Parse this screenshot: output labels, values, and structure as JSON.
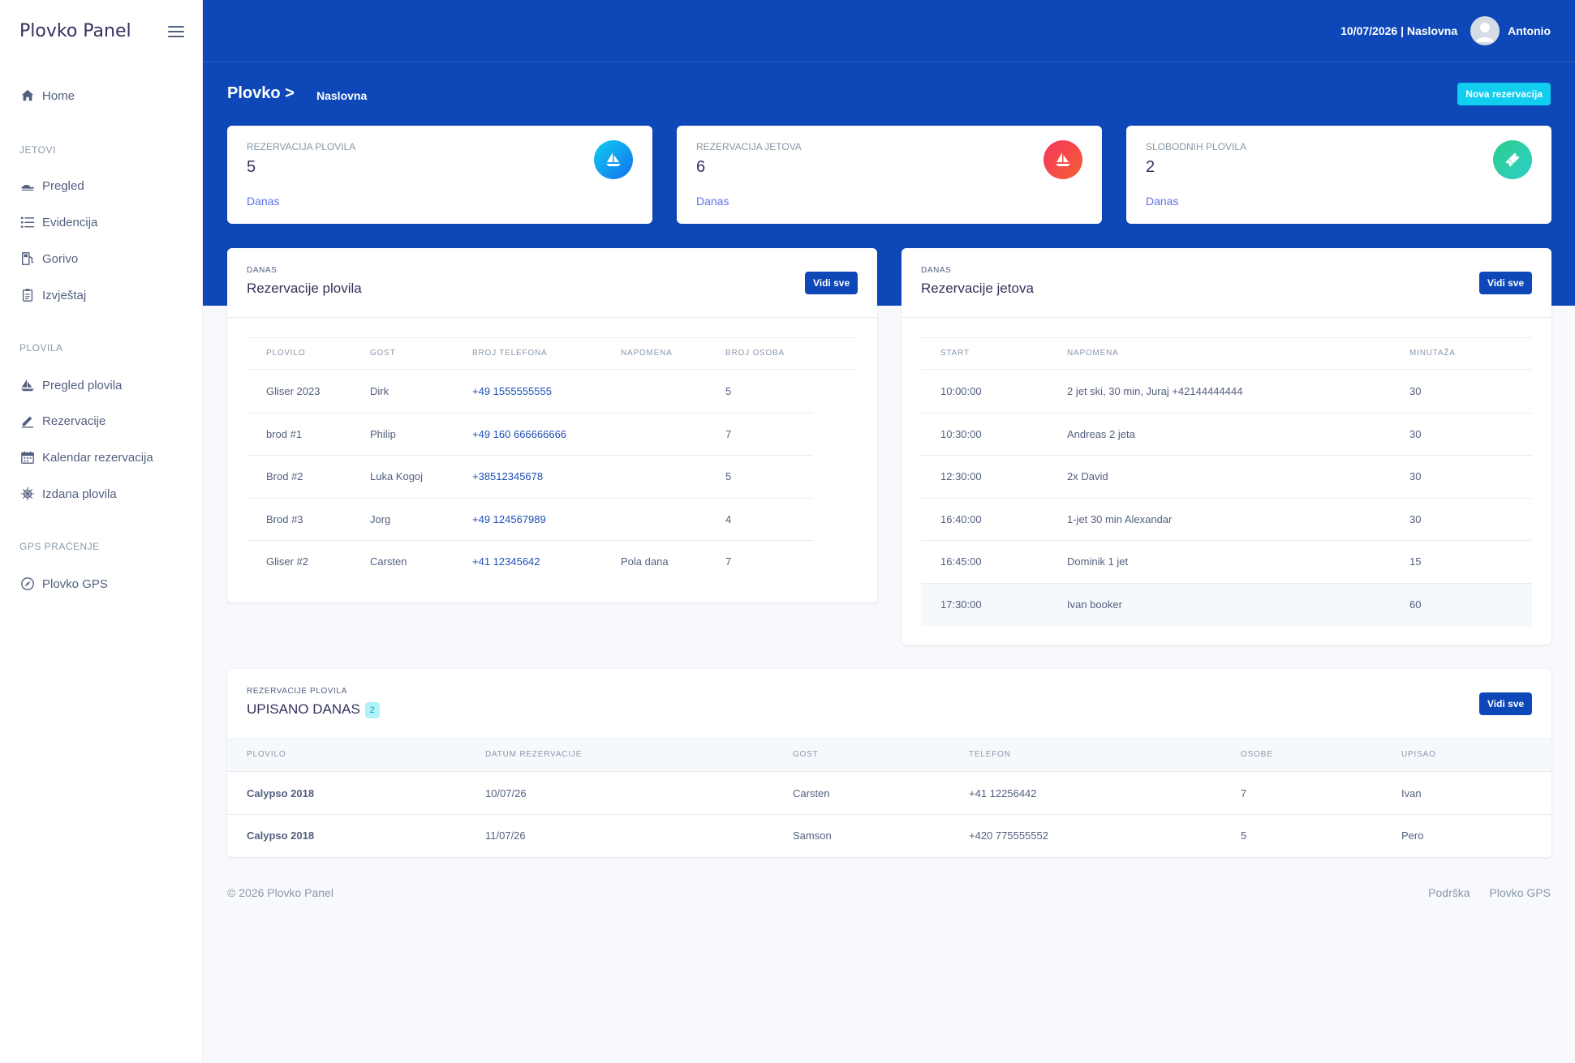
{
  "sidebar": {
    "brand": "Plovko Panel",
    "home": "Home",
    "section_jetovi": "JETOVI",
    "jetovi_items": [
      "Pregled",
      "Evidencija",
      "Gorivo",
      "Izvještaj"
    ],
    "section_plovila": "PLOVILA",
    "plovila_items": [
      "Pregled plovila",
      "Rezervacije",
      "Kalendar rezervacija",
      "Izdana plovila"
    ],
    "section_gps": "GPS PRAĆENJE",
    "gps_items": [
      "Plovko GPS"
    ]
  },
  "header": {
    "date_page": "10/07/2026 | Naslovna",
    "user": "Antonio",
    "title": "Plovko >",
    "breadcrumb": "Naslovna",
    "new_button": "Nova rezervacija"
  },
  "stats": [
    {
      "label": "REZERVACIJA PLOVILA",
      "value": "5",
      "foot": "Danas",
      "icon": "sailboat-icon",
      "color": "#11a0ef"
    },
    {
      "label": "REZERVACIJA JETOVA",
      "value": "6",
      "foot": "Danas",
      "icon": "sailboat-icon",
      "color": "#f5365c"
    },
    {
      "label": "SLOBODNIH PLOVILA",
      "value": "2",
      "foot": "Danas",
      "icon": "ticket-icon",
      "color": "#2dce89"
    }
  ],
  "boats_card": {
    "over": "DANAS",
    "title": "Rezervacije plovila",
    "button": "Vidi sve",
    "columns": [
      "PLOVILO",
      "GOST",
      "BROJ TELEFONA",
      "NAPOMENA",
      "BROJ OSOBA"
    ],
    "rows": [
      [
        "Gliser 2023",
        "Dirk",
        "+49 1555555555",
        "",
        "5"
      ],
      [
        "brod #1",
        "Philip",
        "+49 160 666666666",
        "",
        "7"
      ],
      [
        "Brod #2",
        "Luka Kogoj",
        "+38512345678",
        "",
        "5"
      ],
      [
        "Brod #3",
        "Jorg",
        "+49 124567989",
        "",
        "4"
      ],
      [
        "Gliser #2",
        "Carsten",
        "+41 12345642",
        "Pola dana",
        "7"
      ]
    ]
  },
  "jets_card": {
    "over": "DANAS",
    "title": "Rezervacije jetova",
    "button": "Vidi sve",
    "columns": [
      "START",
      "NAPOMENA",
      "MINUTAŽA"
    ],
    "rows": [
      [
        "10:00:00",
        "2 jet ski, 30 min, Juraj +42144444444",
        "30"
      ],
      [
        "10:30:00",
        "Andreas 2 jeta",
        "30"
      ],
      [
        "12:30:00",
        "2x David",
        "30"
      ],
      [
        "16:40:00",
        "1-jet 30 min Alexandar",
        "30"
      ],
      [
        "16:45:00",
        "Dominik 1 jet",
        "15"
      ],
      [
        "17:30:00",
        "Ivan booker",
        "60"
      ]
    ]
  },
  "today_card": {
    "over": "REZERVACIJE PLOVILA",
    "title": "UPISANO DANAS",
    "count": "2",
    "button": "Vidi sve",
    "columns": [
      "PLOVILO",
      "DATUM REZERVACIJE",
      "GOST",
      "TELEFON",
      "OSOBE",
      "UPISAO"
    ],
    "rows": [
      [
        "Calypso 2018",
        "10/07/26",
        "Carsten",
        "+41 12256442",
        "7",
        "Ivan"
      ],
      [
        "Calypso 2018",
        "11/07/26",
        "Samson",
        "+420 775555552",
        "5",
        "Pero"
      ]
    ]
  },
  "footer": {
    "copyright": "© 2026 Plovko Panel",
    "links": [
      "Podrška",
      "Plovko GPS"
    ]
  }
}
